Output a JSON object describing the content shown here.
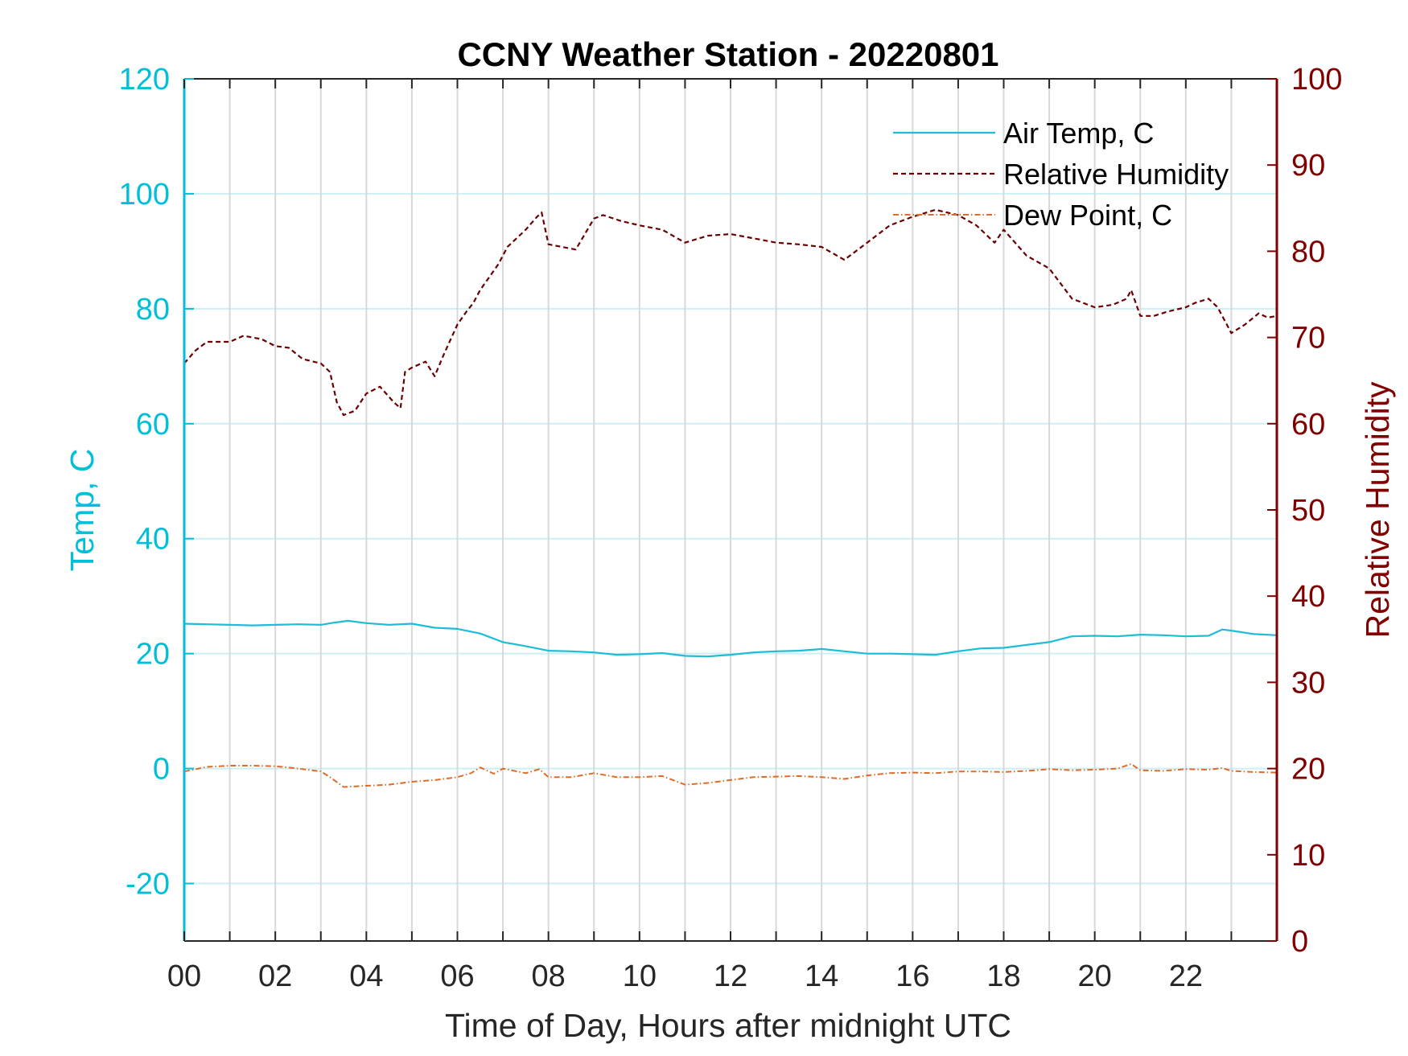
{
  "chart_data": {
    "type": "line",
    "title": "CCNY Weather Station - 20220801",
    "xlabel": "Time of Day, Hours after midnight UTC",
    "ylabel_left": "Temp, C",
    "ylabel_right": "Relative Humidity",
    "xlim": [
      0,
      24
    ],
    "ylim_left": [
      -30,
      120
    ],
    "ylim_right": [
      0,
      100
    ],
    "x_ticks": [
      0,
      2,
      4,
      6,
      8,
      10,
      12,
      14,
      16,
      18,
      20,
      22
    ],
    "x_tick_labels": [
      "00",
      "02",
      "04",
      "06",
      "08",
      "10",
      "12",
      "14",
      "16",
      "18",
      "20",
      "22"
    ],
    "y_left_ticks": [
      -20,
      0,
      20,
      40,
      60,
      80,
      100,
      120
    ],
    "y_left_tick_labels": [
      "-20",
      "0",
      "20",
      "40",
      "60",
      "80",
      "100",
      "120"
    ],
    "y_right_ticks": [
      0,
      10,
      20,
      30,
      40,
      50,
      60,
      70,
      80,
      90,
      100
    ],
    "y_right_tick_labels": [
      "0",
      "10",
      "20",
      "30",
      "40",
      "50",
      "60",
      "70",
      "80",
      "90",
      "100"
    ],
    "vertical_grid_hours": [
      1,
      2,
      3,
      4,
      5,
      6,
      7,
      8,
      9,
      10,
      11,
      12,
      13,
      14,
      15,
      16,
      17,
      18,
      19,
      20,
      21,
      22,
      23
    ],
    "horizontal_grid_temp": [
      -20,
      0,
      20,
      40,
      60,
      80,
      100
    ],
    "legend_position": "top-right",
    "colors": {
      "left_axis": "#00BFD8",
      "right_axis": "#800000",
      "air_temp": "#1EBCD6",
      "humidity": "#6B0000",
      "dew_point": "#E06A28",
      "grid_vertical": "#D8D8D8",
      "grid_horizontal": "#CBEFF5"
    },
    "series": [
      {
        "name": "Air Temp, C",
        "axis": "left",
        "style": "solid",
        "x": [
          0,
          0.5,
          1,
          1.5,
          2,
          2.5,
          3,
          3.3,
          3.6,
          4,
          4.5,
          5,
          5.5,
          6,
          6.5,
          7,
          7.5,
          8,
          8.5,
          9,
          9.5,
          10,
          10.5,
          11,
          11.5,
          12,
          12.5,
          13,
          13.5,
          14,
          14.5,
          15,
          15.5,
          16,
          16.5,
          17,
          17.5,
          18,
          18.5,
          19,
          19.5,
          20,
          20.5,
          21,
          21.5,
          22,
          22.5,
          22.8,
          23,
          23.5,
          24
        ],
        "y": [
          25.2,
          25.1,
          25.0,
          24.9,
          25.0,
          25.1,
          25.0,
          25.4,
          25.7,
          25.3,
          25.0,
          25.2,
          24.5,
          24.3,
          23.5,
          22.0,
          21.3,
          20.5,
          20.4,
          20.2,
          19.8,
          19.9,
          20.1,
          19.6,
          19.5,
          19.8,
          20.2,
          20.4,
          20.5,
          20.8,
          20.4,
          20.0,
          20.0,
          19.9,
          19.8,
          20.4,
          20.9,
          21.0,
          21.5,
          22.0,
          23.0,
          23.1,
          23.0,
          23.3,
          23.2,
          23.0,
          23.1,
          24.2,
          24.0,
          23.4,
          23.2
        ]
      },
      {
        "name": "Relative Humidity",
        "axis": "right",
        "style": "dashed",
        "x": [
          0,
          0.25,
          0.5,
          1,
          1.3,
          1.7,
          2,
          2.3,
          2.6,
          3.0,
          3.2,
          3.35,
          3.5,
          3.75,
          4.0,
          4.3,
          4.6,
          4.75,
          4.85,
          5.0,
          5.3,
          5.5,
          5.7,
          6.0,
          6.2,
          6.35,
          6.5,
          6.7,
          6.9,
          7.1,
          7.3,
          7.5,
          7.75,
          7.85,
          8.0,
          8.3,
          8.6,
          9.0,
          9.2,
          9.6,
          10.0,
          10.5,
          11.0,
          11.5,
          12.0,
          12.5,
          13.0,
          13.5,
          14.0,
          14.5,
          15.0,
          15.5,
          16.0,
          16.5,
          17.0,
          17.4,
          17.8,
          18.0,
          18.5,
          19.0,
          19.5,
          20.0,
          20.4,
          20.7,
          20.8,
          21.0,
          21.3,
          21.6,
          22.0,
          22.2,
          22.5,
          22.7,
          22.9,
          23.0,
          23.3,
          23.6,
          23.8,
          24.0
        ],
        "y": [
          67,
          68.5,
          69.5,
          69.5,
          70.2,
          69.8,
          69,
          68.8,
          67.5,
          67,
          66,
          62.5,
          61.0,
          61.5,
          63.5,
          64.3,
          62.5,
          61.8,
          66.0,
          66.5,
          67.2,
          65.5,
          68.0,
          71.5,
          73.0,
          74.0,
          75.5,
          77.0,
          78.5,
          80.5,
          81.5,
          82.5,
          84.0,
          84.5,
          80.8,
          80.5,
          80.2,
          83.8,
          84.2,
          83.5,
          83.0,
          82.5,
          81.0,
          81.8,
          82.0,
          81.5,
          81.0,
          80.8,
          80.5,
          79.0,
          81.0,
          83.0,
          84.0,
          84.8,
          84.2,
          83.0,
          81.0,
          82.5,
          79.5,
          78.0,
          74.5,
          73.5,
          73.8,
          74.5,
          75.5,
          72.5,
          72.5,
          73.0,
          73.5,
          74.0,
          74.5,
          73.5,
          71.5,
          70.5,
          71.5,
          72.8,
          72.3,
          72.5
        ]
      },
      {
        "name": "Dew Point, C",
        "axis": "left",
        "style": "dash-dot",
        "x": [
          0,
          0.5,
          1,
          1.5,
          2,
          2.5,
          3.0,
          3.2,
          3.5,
          4.0,
          4.5,
          5.0,
          5.5,
          6.0,
          6.3,
          6.5,
          6.8,
          7.0,
          7.5,
          7.8,
          8.0,
          8.5,
          9.0,
          9.5,
          10.0,
          10.5,
          11.0,
          11.5,
          12.0,
          12.5,
          13.0,
          13.5,
          14.0,
          14.5,
          15.0,
          15.5,
          16.0,
          16.5,
          17.0,
          17.5,
          18.0,
          18.5,
          19.0,
          19.5,
          20.0,
          20.5,
          20.8,
          21.0,
          21.5,
          22.0,
          22.5,
          22.8,
          23.0,
          23.5,
          24.0
        ],
        "y": [
          -0.5,
          0.3,
          0.5,
          0.5,
          0.4,
          0,
          -0.5,
          -1.5,
          -3.2,
          -3.0,
          -2.8,
          -2.3,
          -2.0,
          -1.5,
          -0.8,
          0.2,
          -0.9,
          0.0,
          -0.8,
          -0.1,
          -1.5,
          -1.5,
          -0.8,
          -1.5,
          -1.5,
          -1.3,
          -2.8,
          -2.5,
          -2.0,
          -1.5,
          -1.4,
          -1.3,
          -1.5,
          -1.8,
          -1.2,
          -0.8,
          -0.7,
          -0.8,
          -0.5,
          -0.5,
          -0.6,
          -0.4,
          -0.1,
          -0.3,
          -0.2,
          0.0,
          0.8,
          -0.3,
          -0.4,
          -0.1,
          -0.2,
          0.1,
          -0.4,
          -0.6,
          -0.7
        ]
      }
    ]
  }
}
